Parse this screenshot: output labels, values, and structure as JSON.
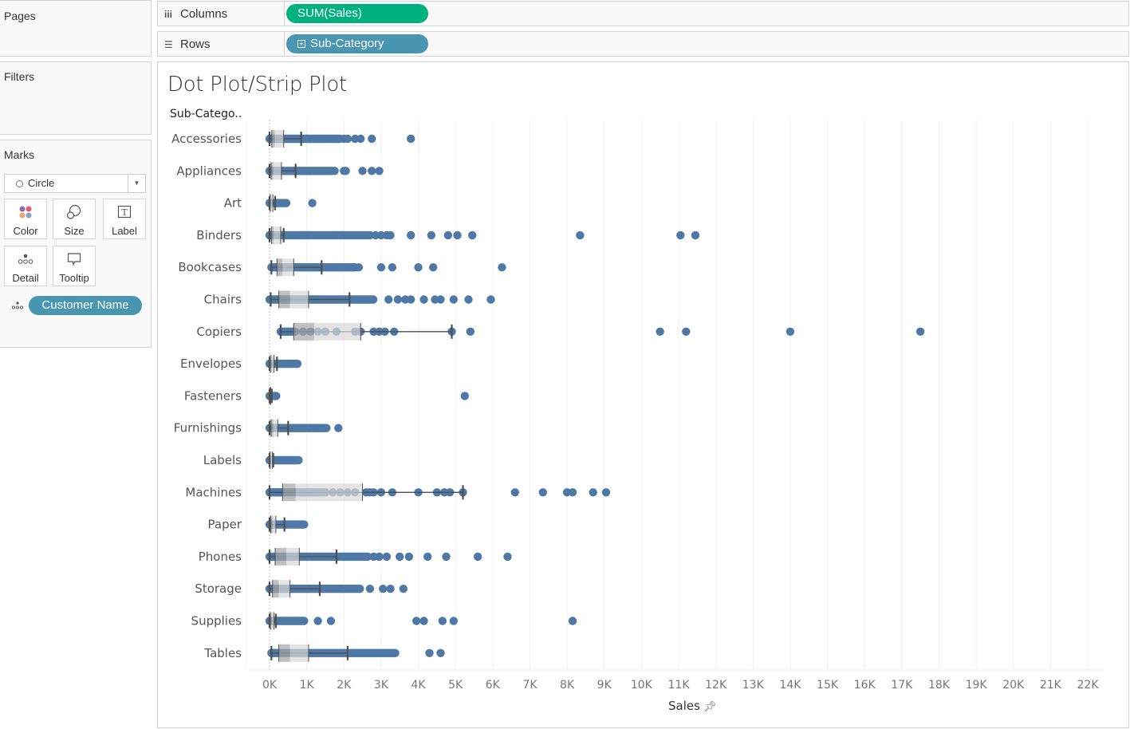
{
  "sidebar": {
    "pages_title": "Pages",
    "filters_title": "Filters",
    "marks_title": "Marks",
    "mark_type": "Circle",
    "mark_buttons": [
      {
        "label": "Color",
        "icon": "color-icon"
      },
      {
        "label": "Size",
        "icon": "size-icon"
      },
      {
        "label": "Label",
        "icon": "label-icon"
      },
      {
        "label": "Detail",
        "icon": "detail-icon"
      },
      {
        "label": "Tooltip",
        "icon": "tooltip-icon"
      }
    ],
    "detail_field": "Customer Name"
  },
  "shelves": {
    "columns_label": "Columns",
    "columns_pill": "SUM(Sales)",
    "rows_label": "Rows",
    "rows_pill": "Sub-Category"
  },
  "colors": {
    "dot": "#4e79a7",
    "columns_pill": "#00b180",
    "rows_pill": "#4996b2",
    "box_lower": "#a5a5a5",
    "box_upper": "#d9d9d9",
    "whisker": "#4f4f4f"
  },
  "chart_data": {
    "type": "scatter",
    "subtype": "dot/strip plot with box plot overlay",
    "title": "Dot Plot/Strip Plot",
    "row_header": "Sub-Catego..",
    "xlabel": "Sales",
    "xlim": [
      0,
      22000
    ],
    "x_ticks": [
      "0K",
      "1K",
      "2K",
      "3K",
      "4K",
      "5K",
      "6K",
      "7K",
      "8K",
      "9K",
      "10K",
      "11K",
      "12K",
      "13K",
      "14K",
      "15K",
      "16K",
      "17K",
      "18K",
      "19K",
      "20K",
      "21K",
      "22K"
    ],
    "grid": true,
    "categories": [
      "Accessories",
      "Appliances",
      "Art",
      "Binders",
      "Bookcases",
      "Chairs",
      "Copiers",
      "Envelopes",
      "Fasteners",
      "Furnishings",
      "Labels",
      "Machines",
      "Paper",
      "Phones",
      "Storage",
      "Supplies",
      "Tables"
    ],
    "series": [
      {
        "name": "Accessories",
        "dense_range": [
          0,
          1900
        ],
        "points": [
          2000,
          2100,
          2300,
          2450,
          2750,
          3800
        ],
        "box": {
          "min": 0,
          "q1": 60,
          "median": 140,
          "q3": 380,
          "max": 850
        }
      },
      {
        "name": "Appliances",
        "dense_range": [
          0,
          1700
        ],
        "points": [
          1750,
          2000,
          2050,
          2500,
          2750,
          2950
        ],
        "box": {
          "min": 0,
          "q1": 40,
          "median": 100,
          "q3": 320,
          "max": 700
        }
      },
      {
        "name": "Art",
        "dense_range": [
          0,
          450
        ],
        "points": [
          1150
        ],
        "box": {
          "min": 0,
          "q1": 15,
          "median": 35,
          "q3": 90,
          "max": 150
        }
      },
      {
        "name": "Binders",
        "dense_range": [
          0,
          2700
        ],
        "points": [
          2850,
          3000,
          3150,
          3250,
          3800,
          4350,
          4800,
          5050,
          5450,
          8350,
          11050,
          11450
        ],
        "box": {
          "min": 0,
          "q1": 50,
          "median": 110,
          "q3": 300,
          "max": 380
        }
      },
      {
        "name": "Bookcases",
        "dense_range": [
          50,
          2300
        ],
        "points": [
          2400,
          3000,
          3300,
          4000,
          4400,
          6250
        ],
        "box": {
          "min": 50,
          "q1": 200,
          "median": 350,
          "q3": 650,
          "max": 1400
        }
      },
      {
        "name": "Chairs",
        "dense_range": [
          0,
          2800
        ],
        "points": [
          3200,
          3450,
          3650,
          3800,
          4150,
          4450,
          4600,
          4950,
          5350,
          5950
        ],
        "box": {
          "min": 30,
          "q1": 250,
          "median": 550,
          "q3": 1050,
          "max": 2150
        }
      },
      {
        "name": "Copiers",
        "dense_range": [
          300,
          700
        ],
        "points": [
          900,
          1100,
          1300,
          1500,
          1800,
          2300,
          2450,
          2800,
          2950,
          3100,
          3350,
          4900,
          5400,
          10500,
          11200,
          14000,
          17500
        ],
        "box": {
          "min": 300,
          "q1": 650,
          "median": 1200,
          "q3": 2450,
          "max": 4900
        }
      },
      {
        "name": "Envelopes",
        "dense_range": [
          0,
          750
        ],
        "points": [],
        "box": {
          "min": 0,
          "q1": 20,
          "median": 60,
          "q3": 120,
          "max": 200
        }
      },
      {
        "name": "Fasteners",
        "dense_range": [
          0,
          200
        ],
        "points": [
          5250
        ],
        "box": {
          "min": 0,
          "q1": 5,
          "median": 15,
          "q3": 30,
          "max": 60
        }
      },
      {
        "name": "Furnishings",
        "dense_range": [
          0,
          1550
        ],
        "points": [
          1850
        ],
        "box": {
          "min": 0,
          "q1": 40,
          "median": 100,
          "q3": 220,
          "max": 500
        }
      },
      {
        "name": "Labels",
        "dense_range": [
          0,
          800
        ],
        "points": [],
        "box": {
          "min": 0,
          "q1": 10,
          "median": 30,
          "q3": 80,
          "max": 100
        }
      },
      {
        "name": "Machines",
        "dense_range": [
          0,
          1500
        ],
        "points": [
          1700,
          1900,
          2100,
          2300,
          2600,
          2700,
          2800,
          3000,
          3300,
          4000,
          4500,
          4700,
          4850,
          5200,
          6600,
          7350,
          8000,
          8150,
          8700,
          9050
        ],
        "box": {
          "min": 0,
          "q1": 350,
          "median": 700,
          "q3": 2500,
          "max": 5200
        }
      },
      {
        "name": "Paper",
        "dense_range": [
          0,
          950
        ],
        "points": [],
        "box": {
          "min": 0,
          "q1": 30,
          "median": 80,
          "q3": 170,
          "max": 400
        }
      },
      {
        "name": "Phones",
        "dense_range": [
          0,
          2650
        ],
        "points": [
          2800,
          2950,
          3150,
          3500,
          3750,
          4250,
          4750,
          5600,
          6400
        ],
        "box": {
          "min": 0,
          "q1": 150,
          "median": 450,
          "q3": 800,
          "max": 1800
        }
      },
      {
        "name": "Storage",
        "dense_range": [
          0,
          2450
        ],
        "points": [
          2700,
          3050,
          3250,
          3600
        ],
        "box": {
          "min": 0,
          "q1": 80,
          "median": 250,
          "q3": 550,
          "max": 1350
        }
      },
      {
        "name": "Supplies",
        "dense_range": [
          0,
          950
        ],
        "points": [
          1300,
          1650,
          3950,
          4150,
          4650,
          4950,
          8150
        ],
        "box": {
          "min": 0,
          "q1": 20,
          "median": 60,
          "q3": 120,
          "max": 170
        }
      },
      {
        "name": "Tables",
        "dense_range": [
          50,
          3400
        ],
        "points": [
          4300,
          4600
        ],
        "box": {
          "min": 50,
          "q1": 250,
          "median": 550,
          "q3": 1050,
          "max": 2100
        }
      }
    ]
  }
}
